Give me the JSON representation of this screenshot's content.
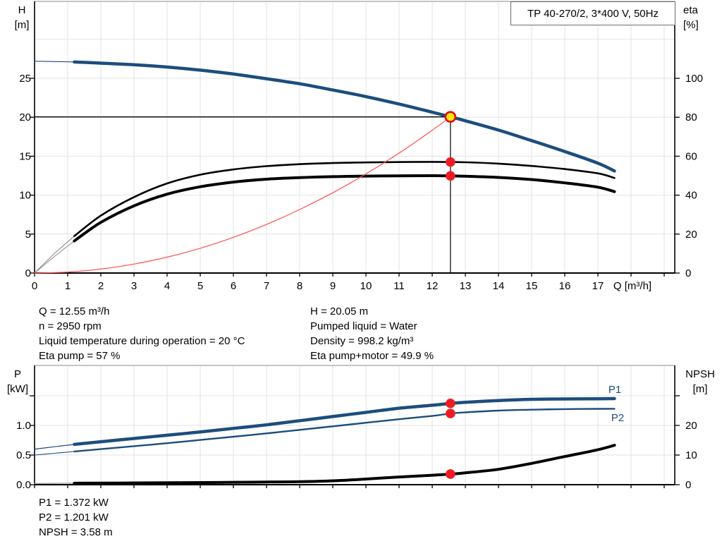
{
  "colors": {
    "curve_blue": "#1c4d7d",
    "curve_black": "#000000",
    "curve_gray_start": "#8c8c8c",
    "system_curve_red": "#ff5050",
    "dot_red": "#ed1c24",
    "duty_yellow": "#ffe60a",
    "duty_ring_red": "#e30613",
    "grid": "#e3e3e3",
    "frame_top": "#b0b0b0",
    "axis": "#000000"
  },
  "chart_data": [
    {
      "type": "line",
      "name": "qh-eta-chart",
      "title": "TP 40-270/2, 3*400 V, 50Hz",
      "left_axis": {
        "label": "H",
        "unit": "[m]",
        "range": [
          0,
          30
        ],
        "ticks": [
          {
            "v": 0,
            "label": "0"
          },
          {
            "v": 5,
            "label": "5"
          },
          {
            "v": 10,
            "label": "10"
          },
          {
            "v": 15,
            "label": "15"
          },
          {
            "v": 20,
            "label": "20"
          },
          {
            "v": 25,
            "label": "25"
          }
        ]
      },
      "right_axis": {
        "label": "eta",
        "unit": "[%]",
        "range": [
          0,
          110
        ],
        "ticks": [
          {
            "v": 0,
            "label": "0"
          },
          {
            "v": 20,
            "label": "20"
          },
          {
            "v": 40,
            "label": "40"
          },
          {
            "v": 60,
            "label": "60"
          },
          {
            "v": 80,
            "label": "80"
          },
          {
            "v": 100,
            "label": "100"
          }
        ]
      },
      "x_axis": {
        "label": "Q [m³/h]",
        "range": [
          0,
          19.3
        ],
        "tick_labels": [
          "0",
          "1",
          "2",
          "3",
          "4",
          "5",
          "6",
          "7",
          "8",
          "9",
          "10",
          "11",
          "12",
          "13",
          "14",
          "15",
          "16",
          "17"
        ]
      },
      "series": [
        {
          "name": "head-curve",
          "axis": "left",
          "color": "#1c4d7d",
          "thin_color": "#1c4d7d",
          "width": 4.5,
          "thin_width": 1.2,
          "split": 1.2,
          "points": [
            [
              0,
              27.2
            ],
            [
              0.6,
              27.15
            ],
            [
              1.2,
              27.1
            ],
            [
              2,
              26.95
            ],
            [
              3,
              26.75
            ],
            [
              4,
              26.45
            ],
            [
              5,
              26.05
            ],
            [
              6,
              25.55
            ],
            [
              7,
              24.95
            ],
            [
              8,
              24.3
            ],
            [
              9,
              23.5
            ],
            [
              10,
              22.65
            ],
            [
              11,
              21.7
            ],
            [
              12,
              20.65
            ],
            [
              12.55,
              20.05
            ],
            [
              13,
              19.55
            ],
            [
              14,
              18.35
            ],
            [
              15,
              17.0
            ],
            [
              16,
              15.6
            ],
            [
              17,
              14.1
            ],
            [
              17.5,
              13.1
            ]
          ]
        },
        {
          "name": "eta-pump-curve",
          "axis": "right",
          "color": "#000000",
          "thin_color": "#8c8c8c",
          "width": 2.6,
          "thin_width": 1.1,
          "split": 1.2,
          "points": [
            [
              0,
              0
            ],
            [
              0.6,
              10
            ],
            [
              1.2,
              19
            ],
            [
              2,
              29.5
            ],
            [
              3,
              39
            ],
            [
              4,
              46
            ],
            [
              5,
              50.5
            ],
            [
              6,
              53.2
            ],
            [
              7,
              54.9
            ],
            [
              8,
              55.9
            ],
            [
              9,
              56.5
            ],
            [
              10,
              56.8
            ],
            [
              11,
              57.0
            ],
            [
              12,
              57.1
            ],
            [
              12.55,
              57.0
            ],
            [
              13,
              56.9
            ],
            [
              14,
              56.2
            ],
            [
              15,
              55.0
            ],
            [
              16,
              53.4
            ],
            [
              17,
              51.2
            ],
            [
              17.5,
              48.8
            ]
          ]
        },
        {
          "name": "eta-pump-motor-curve",
          "axis": "right",
          "color": "#000000",
          "thin_color": "#8c8c8c",
          "width": 4.0,
          "thin_width": 1.1,
          "split": 1.2,
          "points": [
            [
              0,
              0
            ],
            [
              0.6,
              8.5
            ],
            [
              1.2,
              16.5
            ],
            [
              2,
              26
            ],
            [
              3,
              34.5
            ],
            [
              4,
              40.5
            ],
            [
              5,
              44.3
            ],
            [
              6,
              46.7
            ],
            [
              7,
              48.2
            ],
            [
              8,
              49.0
            ],
            [
              9,
              49.5
            ],
            [
              10,
              49.8
            ],
            [
              11,
              49.9
            ],
            [
              12,
              50.0
            ],
            [
              12.55,
              49.9
            ],
            [
              13,
              49.7
            ],
            [
              14,
              49.1
            ],
            [
              15,
              48.0
            ],
            [
              16,
              46.3
            ],
            [
              17,
              44.1
            ],
            [
              17.5,
              41.8
            ]
          ]
        },
        {
          "name": "system-curve",
          "axis": "left",
          "color": "#ff5050",
          "thin_color": "#ff5050",
          "width": 1.2,
          "thin_width": 1.2,
          "split": null,
          "points": [
            [
              0,
              0
            ],
            [
              1,
              0.13
            ],
            [
              2,
              0.51
            ],
            [
              3,
              1.15
            ],
            [
              4,
              2.04
            ],
            [
              5,
              3.18
            ],
            [
              6,
              4.58
            ],
            [
              7,
              6.24
            ],
            [
              8,
              8.15
            ],
            [
              9,
              10.31
            ],
            [
              10,
              12.73
            ],
            [
              11,
              15.4
            ],
            [
              12,
              18.33
            ],
            [
              12.55,
              20.05
            ]
          ]
        }
      ],
      "crosshair": {
        "q": 12.55,
        "v": 20.05,
        "axis": "left"
      },
      "markers": [
        {
          "q": 12.55,
          "v": 20.05,
          "axis": "left",
          "style": "duty-point"
        },
        {
          "q": 12.55,
          "v": 57.0,
          "axis": "right",
          "style": "dot"
        },
        {
          "q": 12.55,
          "v": 49.9,
          "axis": "right",
          "style": "dot"
        }
      ],
      "operating_point": {
        "Q": "12.55 m³/h",
        "H": "20.05 m",
        "eta_pump": "57 %",
        "eta_pump_motor": "49.9 %"
      },
      "curve_labels": []
    },
    {
      "type": "line",
      "name": "power-npsh-chart",
      "title": "",
      "left_axis": {
        "label": "P",
        "unit": "[kW]",
        "range": [
          0,
          2
        ],
        "ticks": [
          {
            "v": 0,
            "label": "0.0"
          },
          {
            "v": 0.5,
            "label": "0.5"
          },
          {
            "v": 1.0,
            "label": "1.0"
          },
          {
            "v": 1.5,
            "label": ""
          }
        ]
      },
      "right_axis": {
        "label": "NPSH",
        "unit": "[m]",
        "range": [
          0,
          40
        ],
        "ticks": [
          {
            "v": 0,
            "label": "0"
          },
          {
            "v": 10,
            "label": "10"
          },
          {
            "v": 20,
            "label": "20"
          },
          {
            "v": 30,
            "label": ""
          }
        ]
      },
      "x_axis": {
        "label": "",
        "range": [
          0,
          19.3
        ],
        "tick_labels": []
      },
      "series": [
        {
          "name": "p1-curve",
          "axis": "left",
          "color": "#1c4d7d",
          "thin_color": "#1c4d7d",
          "width": 4.5,
          "thin_width": 1.2,
          "split": 1.2,
          "points": [
            [
              0,
              0.6
            ],
            [
              0.6,
              0.64
            ],
            [
              1.2,
              0.68
            ],
            [
              2,
              0.725
            ],
            [
              3,
              0.78
            ],
            [
              4,
              0.835
            ],
            [
              5,
              0.89
            ],
            [
              6,
              0.95
            ],
            [
              7,
              1.01
            ],
            [
              8,
              1.08
            ],
            [
              9,
              1.15
            ],
            [
              10,
              1.22
            ],
            [
              11,
              1.29
            ],
            [
              12,
              1.34
            ],
            [
              12.55,
              1.372
            ],
            [
              13,
              1.39
            ],
            [
              14,
              1.42
            ],
            [
              15,
              1.44
            ],
            [
              16,
              1.447
            ],
            [
              17,
              1.45
            ],
            [
              17.5,
              1.452
            ]
          ]
        },
        {
          "name": "p2-curve",
          "axis": "left",
          "color": "#1c4d7d",
          "thin_color": "#1c4d7d",
          "width": 2.4,
          "thin_width": 1.1,
          "split": 1.2,
          "points": [
            [
              0,
              0.5
            ],
            [
              0.6,
              0.53
            ],
            [
              1.2,
              0.56
            ],
            [
              2,
              0.6
            ],
            [
              3,
              0.65
            ],
            [
              4,
              0.7
            ],
            [
              5,
              0.755
            ],
            [
              6,
              0.81
            ],
            [
              7,
              0.865
            ],
            [
              8,
              0.925
            ],
            [
              9,
              0.985
            ],
            [
              10,
              1.045
            ],
            [
              11,
              1.105
            ],
            [
              12,
              1.16
            ],
            [
              12.55,
              1.201
            ],
            [
              13,
              1.22
            ],
            [
              14,
              1.25
            ],
            [
              15,
              1.265
            ],
            [
              16,
              1.275
            ],
            [
              17,
              1.28
            ],
            [
              17.5,
              1.281
            ]
          ]
        },
        {
          "name": "npsh-curve",
          "axis": "right",
          "color": "#000000",
          "thin_color": "#8c8c8c",
          "width": 4.0,
          "thin_width": 1.1,
          "split": 1.2,
          "points": [
            [
              0,
              0.4
            ],
            [
              0.6,
              0.45
            ],
            [
              1.2,
              0.5
            ],
            [
              2,
              0.55
            ],
            [
              3,
              0.6
            ],
            [
              4,
              0.65
            ],
            [
              5,
              0.72
            ],
            [
              6,
              0.8
            ],
            [
              7,
              0.9
            ],
            [
              8,
              1.0
            ],
            [
              9,
              1.3
            ],
            [
              10,
              1.9
            ],
            [
              11,
              2.6
            ],
            [
              12,
              3.2
            ],
            [
              12.55,
              3.58
            ],
            [
              13,
              4.0
            ],
            [
              14,
              5.2
            ],
            [
              15,
              7.2
            ],
            [
              16,
              9.5
            ],
            [
              17,
              11.8
            ],
            [
              17.5,
              13.3
            ]
          ]
        }
      ],
      "crosshair": null,
      "markers": [
        {
          "q": 12.55,
          "v": 1.372,
          "axis": "left",
          "style": "dot"
        },
        {
          "q": 12.55,
          "v": 1.201,
          "axis": "left",
          "style": "dot"
        },
        {
          "q": 12.55,
          "v": 3.58,
          "axis": "right",
          "style": "dot"
        }
      ],
      "operating_point": {
        "P1": "1.372 kW",
        "P2": "1.201 kW",
        "NPSH": "3.58 m"
      },
      "curve_labels": [
        {
          "text": "P1"
        },
        {
          "text": "P2"
        }
      ]
    }
  ],
  "info_top_left": [
    "Q = 12.55 m³/h",
    "n = 2950 rpm",
    "Liquid temperature during operation = 20 °C",
    "Eta pump = 57 %"
  ],
  "info_top_right": [
    "H = 20.05 m",
    "Pumped liquid = Water",
    "Density = 998.2 kg/m³",
    "Eta pump+motor = 49.9 %"
  ],
  "info_bottom": [
    "P1 = 1.372 kW",
    "P2 = 1.201 kW",
    "NPSH = 3.58 m"
  ]
}
